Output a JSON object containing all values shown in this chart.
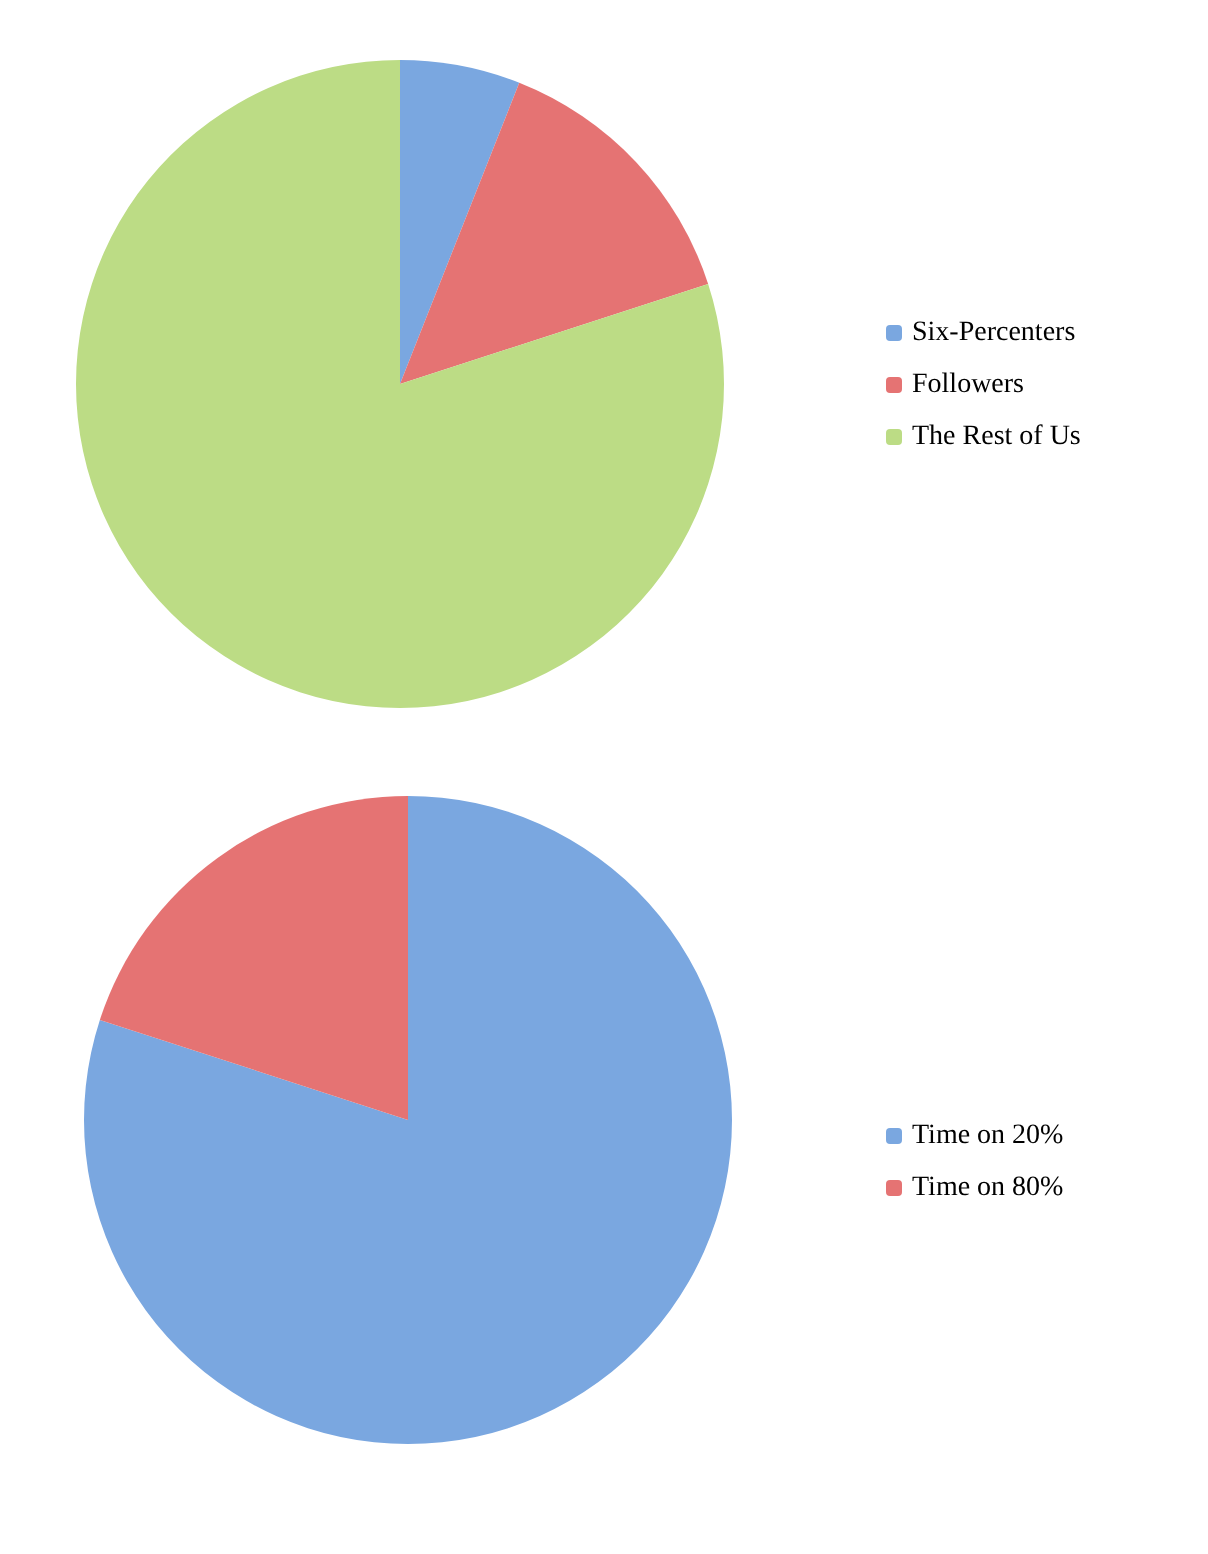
{
  "chart_data": [
    {
      "type": "pie",
      "categories": [
        "Six-Percenters",
        "Followers",
        "The Rest of Us"
      ],
      "values": [
        6,
        14,
        80
      ],
      "colors": [
        "#7aa7e0",
        "#e57373",
        "#bcdc85"
      ],
      "legend": "right"
    },
    {
      "type": "pie",
      "categories": [
        "Time on 20%",
        "Time on 80%"
      ],
      "values": [
        80,
        20
      ],
      "colors": [
        "#7aa7e0",
        "#e57373"
      ],
      "legend": "right"
    }
  ]
}
